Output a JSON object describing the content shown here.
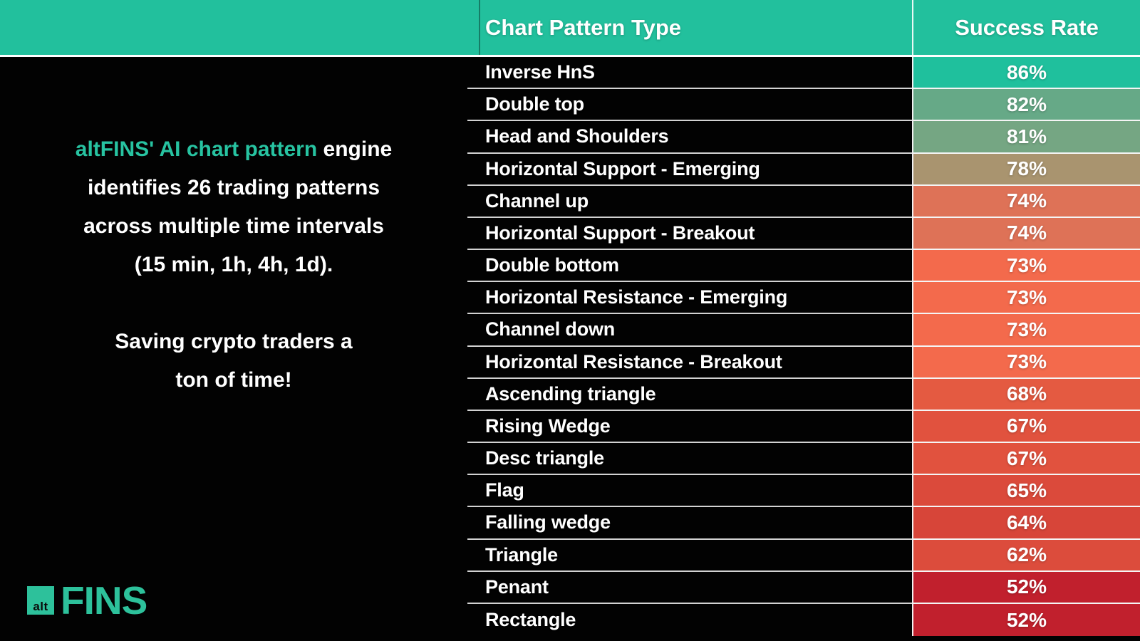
{
  "colors": {
    "header_bg": "#22C09D",
    "accent_teal": "#27C3A1",
    "logo_teal": "#2DC19B",
    "panel_bg": "#020202"
  },
  "header": {
    "col1": "Chart Pattern Type",
    "col2": "Success Rate"
  },
  "intro": {
    "line1_accent": "altFINS' AI chart pattern",
    "line1_rest": " engine",
    "line2": "identifies 26 trading patterns",
    "line3": "across multiple time intervals",
    "line4": "(15 min, 1h, 4h, 1d)."
  },
  "tagline": {
    "line1": "Saving crypto traders a",
    "line2": "ton of time!"
  },
  "logo": {
    "square_text": "alt",
    "wordmark": "FINS"
  },
  "table": {
    "rows": [
      {
        "pattern": "Inverse HnS",
        "rate": "86%",
        "color": "#1FC09D"
      },
      {
        "pattern": "Double top",
        "rate": "82%",
        "color": "#66A987"
      },
      {
        "pattern": "Head and Shoulders",
        "rate": "81%",
        "color": "#75A683"
      },
      {
        "pattern": "Horizontal Support - Emerging",
        "rate": "78%",
        "color": "#A9946F"
      },
      {
        "pattern": "Channel up",
        "rate": "74%",
        "color": "#DE7257"
      },
      {
        "pattern": "Horizontal Support - Breakout",
        "rate": "74%",
        "color": "#DE7257"
      },
      {
        "pattern": "Double bottom",
        "rate": "73%",
        "color": "#F36A4C"
      },
      {
        "pattern": "Horizontal Resistance - Emerging",
        "rate": "73%",
        "color": "#F36A4C"
      },
      {
        "pattern": "Channel down",
        "rate": "73%",
        "color": "#F36A4C"
      },
      {
        "pattern": "Horizontal Resistance - Breakout",
        "rate": "73%",
        "color": "#F36A4C"
      },
      {
        "pattern": "Ascending triangle",
        "rate": "68%",
        "color": "#E45A41"
      },
      {
        "pattern": "Rising Wedge",
        "rate": "67%",
        "color": "#E1523E"
      },
      {
        "pattern": "Desc triangle",
        "rate": "67%",
        "color": "#E1523E"
      },
      {
        "pattern": "Flag",
        "rate": "65%",
        "color": "#DB4A3B"
      },
      {
        "pattern": "Falling wedge",
        "rate": "64%",
        "color": "#D74539"
      },
      {
        "pattern": "Triangle",
        "rate": "62%",
        "color": "#DC4C3C"
      },
      {
        "pattern": "Penant",
        "rate": "52%",
        "color": "#C1202D"
      },
      {
        "pattern": "Rectangle",
        "rate": "52%",
        "color": "#C1202D"
      }
    ]
  },
  "chart_data": {
    "type": "table",
    "title": "Chart pattern success rates",
    "columns": [
      "Chart Pattern Type",
      "Success Rate"
    ],
    "categories": [
      "Inverse HnS",
      "Double top",
      "Head and Shoulders",
      "Horizontal Support - Emerging",
      "Channel up",
      "Horizontal Support - Breakout",
      "Double bottom",
      "Horizontal Resistance - Emerging",
      "Channel down",
      "Horizontal Resistance - Breakout",
      "Ascending triangle",
      "Rising Wedge",
      "Desc triangle",
      "Flag",
      "Falling wedge",
      "Triangle",
      "Penant",
      "Rectangle"
    ],
    "values": [
      86,
      82,
      81,
      78,
      74,
      74,
      73,
      73,
      73,
      73,
      68,
      67,
      67,
      65,
      64,
      62,
      52,
      52
    ],
    "unit": "%",
    "layout": "two-column table, success-rate cells color-graded from teal (high) through tan and salmon to crimson (low)"
  }
}
